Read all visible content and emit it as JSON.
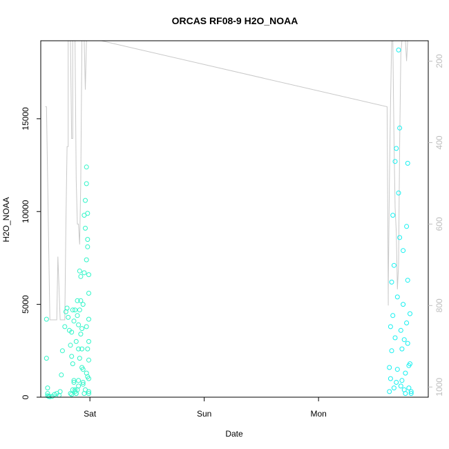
{
  "chart_data": {
    "type": "scatter",
    "title": "ORCAS RF08-9 H2O_NOAA",
    "xlabel": "Date",
    "ylabel": "H2O_NOAA",
    "ylim": [
      0,
      19200
    ],
    "xlim": [
      -0.43,
      2.96
    ],
    "x_ticks": [
      {
        "value": 0,
        "label": "Sat"
      },
      {
        "value": 1,
        "label": "Sun"
      },
      {
        "value": 2,
        "label": "Mon"
      }
    ],
    "y_ticks": [
      {
        "value": 0,
        "label": "0"
      },
      {
        "value": 5000,
        "label": "5000"
      },
      {
        "value": 10000,
        "label": "10000"
      },
      {
        "value": 15000,
        "label": "15000"
      }
    ],
    "y2_ticks": [
      {
        "value": 200,
        "label": "200"
      },
      {
        "value": 400,
        "label": "400"
      },
      {
        "value": 600,
        "label": "600"
      },
      {
        "value": 800,
        "label": "800"
      },
      {
        "value": 1000,
        "label": "1000"
      }
    ],
    "y2lim": [
      1025,
      150
    ],
    "y2_reversed": true,
    "grid": false,
    "colors": {
      "flight1_points": "#2ef5c8",
      "flight2_points": "#14f0f0",
      "pressure_line": "#c8c8c8",
      "axis": "#000000",
      "right_axis": "#bdbdbd"
    },
    "series": [
      {
        "kind": "points",
        "flight": 1,
        "x": [
          -0.38,
          -0.38,
          -0.37,
          -0.37,
          -0.37,
          -0.36,
          -0.35,
          -0.33,
          -0.31,
          -0.29,
          -0.27,
          -0.26,
          -0.25,
          -0.24,
          -0.22,
          -0.21,
          -0.2,
          -0.19,
          -0.18,
          -0.17,
          -0.16,
          -0.16,
          -0.15,
          -0.15,
          -0.14,
          -0.14,
          -0.13,
          -0.13,
          -0.12,
          -0.12,
          -0.11,
          -0.11,
          -0.1,
          -0.1,
          -0.1,
          -0.09,
          -0.09,
          -0.08,
          -0.08,
          -0.07,
          -0.07,
          -0.06,
          -0.06,
          -0.05,
          -0.05,
          -0.04,
          -0.04,
          -0.03,
          -0.03,
          -0.03,
          -0.02,
          -0.02,
          -0.02,
          -0.01,
          -0.01,
          -0.01,
          -0.01,
          -0.01,
          -0.01,
          -0.01,
          -0.01,
          -0.02,
          -0.02,
          -0.03,
          -0.03,
          -0.04,
          -0.05,
          -0.06,
          -0.06,
          -0.07,
          -0.08,
          -0.09,
          -0.1,
          -0.11,
          -0.12,
          -0.13,
          -0.14,
          -0.15,
          -0.16,
          -0.17
        ],
        "y": [
          4200,
          2100,
          500,
          200,
          80,
          40,
          30,
          50,
          150,
          200,
          100,
          300,
          1200,
          2500,
          3800,
          4600,
          4800,
          4300,
          3600,
          2800,
          2200,
          3500,
          4700,
          1800,
          900,
          4100,
          4700,
          400,
          200,
          3000,
          4400,
          5200,
          3900,
          600,
          2600,
          4700,
          6800,
          6500,
          5200,
          3700,
          1600,
          800,
          5000,
          6700,
          9800,
          10600,
          9100,
          7400,
          11500,
          12400,
          9900,
          8500,
          8100,
          6600,
          5600,
          4200,
          3000,
          2000,
          1000,
          300,
          200,
          1100,
          2600,
          3800,
          1300,
          400,
          200,
          700,
          1500,
          2600,
          3400,
          2100,
          900,
          400,
          200,
          300,
          800,
          400,
          150,
          200
        ]
      },
      {
        "kind": "points",
        "flight": 2,
        "x": [
          2.62,
          2.62,
          2.63,
          2.63,
          2.64,
          2.64,
          2.65,
          2.65,
          2.66,
          2.66,
          2.67,
          2.67,
          2.68,
          2.68,
          2.69,
          2.69,
          2.7,
          2.7,
          2.71,
          2.71,
          2.72,
          2.72,
          2.73,
          2.73,
          2.74,
          2.74,
          2.75,
          2.75,
          2.76,
          2.76,
          2.77,
          2.77,
          2.78,
          2.78,
          2.78,
          2.79,
          2.79,
          2.8,
          2.8,
          2.81,
          2.81
        ],
        "y": [
          1600,
          300,
          3800,
          1000,
          6200,
          2500,
          9800,
          4400,
          500,
          7100,
          12700,
          3200,
          800,
          13400,
          5400,
          1500,
          11000,
          18700,
          14500,
          8600,
          3600,
          600,
          900,
          2600,
          5000,
          7900,
          3100,
          400,
          200,
          1300,
          4000,
          9200,
          12600,
          6300,
          2900,
          500,
          1700,
          4500,
          1800,
          300,
          200
        ]
      },
      {
        "kind": "line",
        "name": "pressure",
        "axis": "right",
        "x": [
          -0.39,
          -0.38,
          -0.35,
          -0.34,
          -0.33,
          -0.32,
          -0.31,
          -0.29,
          -0.28,
          -0.28,
          -0.26,
          -0.25,
          -0.25,
          -0.24,
          -0.23,
          -0.23,
          -0.22,
          -0.22,
          -0.21,
          -0.21,
          -0.2,
          -0.19,
          -0.19,
          -0.18,
          -0.17,
          -0.17,
          -0.16,
          -0.15,
          -0.15,
          -0.14,
          -0.14,
          -0.13,
          -0.12,
          -0.12,
          -0.11,
          -0.1,
          -0.09,
          -0.09,
          -0.08,
          -0.08,
          -0.07,
          -0.07,
          -0.06,
          -0.05,
          -0.04,
          -0.04,
          -0.03,
          -0.02,
          -0.02,
          -0.01,
          0.0,
          0.04,
          0.1,
          2.6,
          2.61,
          2.61,
          2.62,
          2.63,
          2.64,
          2.65,
          2.66,
          2.67,
          2.68,
          2.69,
          2.7,
          2.71,
          2.72,
          2.73,
          2.74,
          2.75,
          2.76,
          2.77,
          2.78,
          2.79,
          2.8
        ],
        "y": [
          312,
          312,
          835,
          835,
          835,
          835,
          835,
          835,
          680,
          680,
          835,
          835,
          835,
          835,
          835,
          835,
          835,
          835,
          600,
          600,
          410,
          410,
          150,
          150,
          150,
          150,
          390,
          390,
          150,
          150,
          150,
          150,
          490,
          490,
          600,
          600,
          650,
          650,
          500,
          500,
          150,
          150,
          150,
          150,
          270,
          270,
          150,
          150,
          150,
          150,
          150,
          150,
          150,
          312,
          800,
          760,
          500,
          300,
          150,
          150,
          400,
          560,
          620,
          760,
          700,
          400,
          180,
          150,
          150,
          150,
          150,
          200,
          150,
          150,
          150
        ]
      }
    ]
  }
}
